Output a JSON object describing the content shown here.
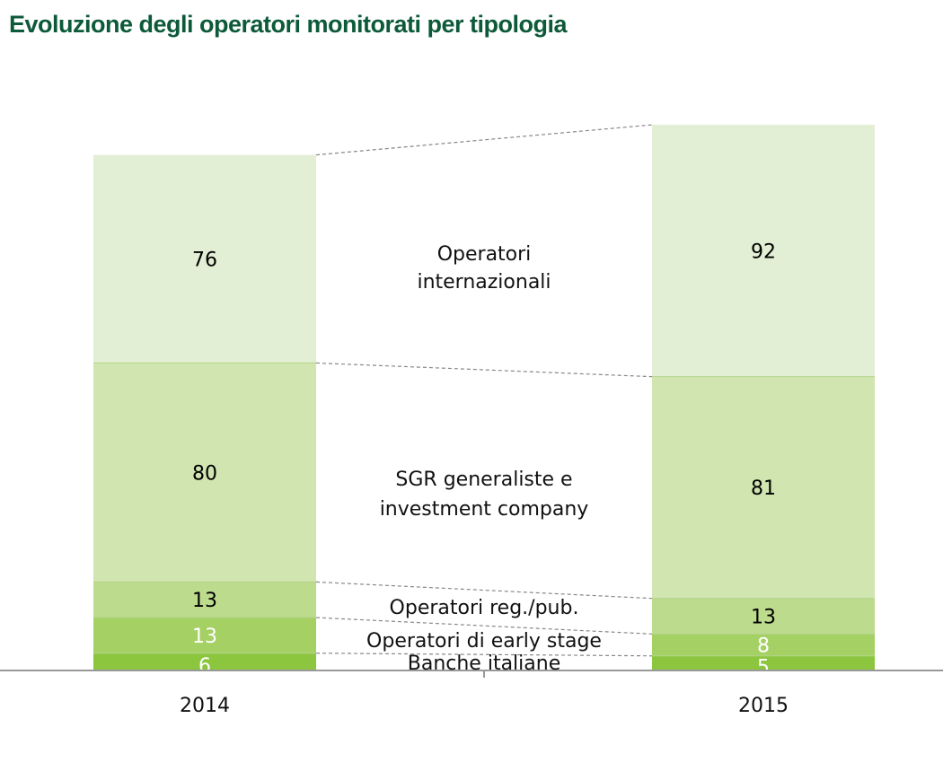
{
  "chart_data": {
    "type": "bar",
    "stacked": true,
    "title": "Evoluzione degli operatori monitorati per tipologia",
    "categories": [
      "2014",
      "2015"
    ],
    "series": [
      {
        "name": "Banche italiane",
        "values": [
          6,
          5
        ],
        "color": "#8cc63f",
        "label_color": "#ffffff"
      },
      {
        "name": "Operatori di early stage",
        "values": [
          13,
          8
        ],
        "color": "#a5d063",
        "label_color": "#ffffff"
      },
      {
        "name": "Operatori reg./pub.",
        "values": [
          13,
          13
        ],
        "color": "#bcdb8d",
        "label_color": "#000000"
      },
      {
        "name": "SGR generaliste e investment company",
        "values": [
          80,
          81
        ],
        "color": "#d0e5af",
        "label_color": "#000000"
      },
      {
        "name": "Operatori internazionali",
        "values": [
          76,
          92
        ],
        "color": "#e3efd4",
        "label_color": "#000000"
      }
    ],
    "series_label_lines": [
      [
        "Banche italiane"
      ],
      [
        "Operatori di early stage"
      ],
      [
        "Operatori reg./pub."
      ],
      [
        "SGR generaliste e",
        "investment company"
      ],
      [
        "Operatori",
        "internazionali"
      ]
    ],
    "grid": false,
    "legend": "inline-between-bars"
  }
}
